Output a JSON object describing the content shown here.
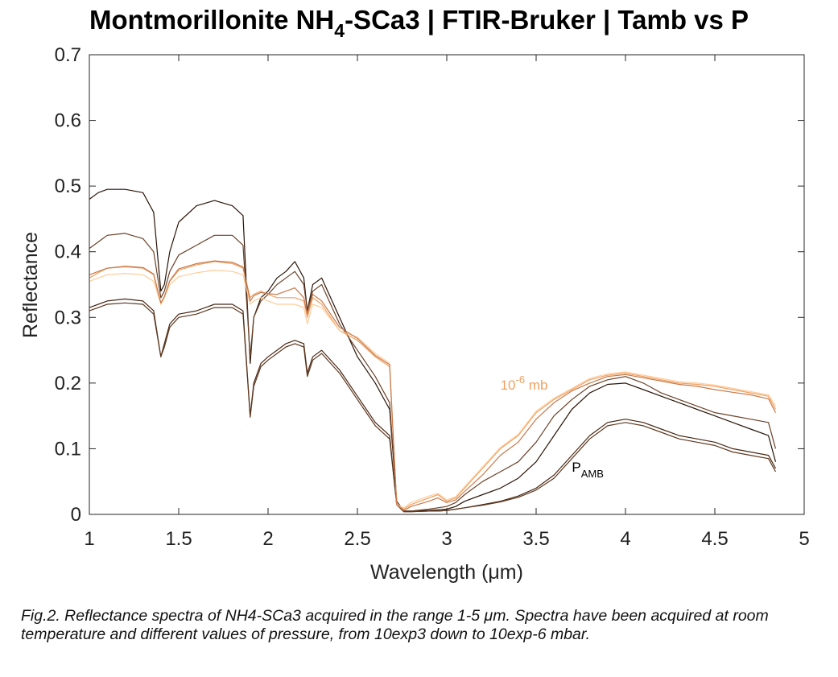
{
  "title": {
    "main": "Montmorillonite NH",
    "sub": "4",
    "rest": "-SCa3 | FTIR-Bruker | Tamb vs P"
  },
  "caption": "Fig.2. Reflectance spectra of NH4-SCa3 acquired in the range 1-5 μm. Spectra have been acquired at room temperature and different values of pressure, from 10exp3 down to 10exp-6 mbar.",
  "chart_data": {
    "type": "line",
    "xlabel": "Wavelength (μm)",
    "ylabel": "Reflectance",
    "xlim": [
      1,
      5
    ],
    "ylim": [
      0,
      0.7
    ],
    "xticks": [
      1,
      1.5,
      2,
      2.5,
      3,
      3.5,
      4,
      4.5,
      5
    ],
    "xtick_labels": [
      "1",
      "1.5",
      "2",
      "2.5",
      "3",
      "3.5",
      "4",
      "4.5",
      "5"
    ],
    "yticks": [
      0,
      0.1,
      0.2,
      0.3,
      0.4,
      0.5,
      0.6,
      0.7
    ],
    "ytick_labels": [
      "0",
      "0.1",
      "0.2",
      "0.3",
      "0.4",
      "0.5",
      "0.6",
      "0.7"
    ],
    "grid": false,
    "annotations": [
      {
        "text": "10",
        "sup": "-6",
        "suffix": " mb",
        "x": 3.3,
        "y": 0.19,
        "color": "#f0a060"
      },
      {
        "text": "P",
        "sub": "AMB",
        "x": 3.7,
        "y": 0.065,
        "color": "#000000"
      }
    ],
    "series": [
      {
        "color": "#2a1408",
        "x": [
          1.0,
          1.05,
          1.1,
          1.2,
          1.3,
          1.36,
          1.4,
          1.42,
          1.45,
          1.5,
          1.6,
          1.7,
          1.8,
          1.86,
          1.9,
          1.92,
          1.96,
          2.0,
          2.05,
          2.1,
          2.15,
          2.2,
          2.22,
          2.25,
          2.3,
          2.4,
          2.5,
          2.6,
          2.68,
          2.72,
          2.76,
          2.8,
          2.9,
          2.95,
          3.0,
          3.05,
          3.1,
          3.2,
          3.3,
          3.4,
          3.5,
          3.6,
          3.7,
          3.8,
          3.9,
          4.0,
          4.1,
          4.2,
          4.3,
          4.4,
          4.5,
          4.6,
          4.7,
          4.8,
          4.84
        ],
        "y": [
          0.48,
          0.49,
          0.495,
          0.495,
          0.49,
          0.46,
          0.34,
          0.35,
          0.4,
          0.445,
          0.47,
          0.478,
          0.47,
          0.455,
          0.23,
          0.3,
          0.33,
          0.34,
          0.36,
          0.37,
          0.385,
          0.36,
          0.31,
          0.35,
          0.36,
          0.3,
          0.24,
          0.2,
          0.16,
          0.02,
          0.005,
          0.005,
          0.006,
          0.007,
          0.008,
          0.012,
          0.02,
          0.03,
          0.04,
          0.055,
          0.08,
          0.12,
          0.16,
          0.185,
          0.198,
          0.2,
          0.19,
          0.18,
          0.17,
          0.16,
          0.15,
          0.14,
          0.13,
          0.12,
          0.08
        ]
      },
      {
        "color": "#6b4128",
        "x": [
          1.0,
          1.05,
          1.1,
          1.2,
          1.3,
          1.36,
          1.4,
          1.42,
          1.45,
          1.5,
          1.6,
          1.7,
          1.8,
          1.86,
          1.9,
          1.92,
          1.96,
          2.0,
          2.05,
          2.1,
          2.15,
          2.2,
          2.22,
          2.25,
          2.3,
          2.4,
          2.5,
          2.6,
          2.68,
          2.72,
          2.76,
          2.8,
          2.9,
          2.95,
          3.0,
          3.05,
          3.1,
          3.2,
          3.3,
          3.4,
          3.5,
          3.6,
          3.7,
          3.8,
          3.9,
          4.0,
          4.1,
          4.2,
          4.3,
          4.4,
          4.5,
          4.6,
          4.7,
          4.8,
          4.84
        ],
        "y": [
          0.405,
          0.415,
          0.425,
          0.428,
          0.42,
          0.4,
          0.33,
          0.34,
          0.37,
          0.395,
          0.41,
          0.425,
          0.425,
          0.41,
          0.24,
          0.3,
          0.325,
          0.335,
          0.35,
          0.36,
          0.37,
          0.35,
          0.31,
          0.34,
          0.35,
          0.29,
          0.25,
          0.21,
          0.17,
          0.02,
          0.005,
          0.005,
          0.008,
          0.01,
          0.012,
          0.018,
          0.03,
          0.05,
          0.065,
          0.08,
          0.11,
          0.15,
          0.175,
          0.195,
          0.205,
          0.21,
          0.2,
          0.185,
          0.175,
          0.165,
          0.155,
          0.15,
          0.145,
          0.14,
          0.1
        ]
      },
      {
        "color": "#4a2814",
        "x": [
          1.0,
          1.05,
          1.1,
          1.2,
          1.3,
          1.36,
          1.4,
          1.42,
          1.45,
          1.5,
          1.6,
          1.7,
          1.8,
          1.86,
          1.9,
          1.92,
          1.96,
          2.0,
          2.05,
          2.1,
          2.15,
          2.2,
          2.22,
          2.25,
          2.3,
          2.4,
          2.5,
          2.6,
          2.68,
          2.72,
          2.76,
          2.8,
          2.9,
          2.95,
          3.0,
          3.05,
          3.1,
          3.2,
          3.3,
          3.4,
          3.5,
          3.6,
          3.7,
          3.8,
          3.9,
          4.0,
          4.1,
          4.2,
          4.3,
          4.4,
          4.5,
          4.6,
          4.7,
          4.8,
          4.84
        ],
        "y": [
          0.315,
          0.32,
          0.325,
          0.328,
          0.325,
          0.31,
          0.24,
          0.26,
          0.29,
          0.305,
          0.31,
          0.32,
          0.32,
          0.31,
          0.15,
          0.2,
          0.23,
          0.24,
          0.25,
          0.26,
          0.265,
          0.26,
          0.215,
          0.24,
          0.25,
          0.22,
          0.18,
          0.14,
          0.12,
          0.015,
          0.004,
          0.004,
          0.005,
          0.005,
          0.006,
          0.008,
          0.01,
          0.015,
          0.02,
          0.028,
          0.04,
          0.06,
          0.09,
          0.12,
          0.14,
          0.145,
          0.14,
          0.13,
          0.12,
          0.115,
          0.11,
          0.1,
          0.095,
          0.09,
          0.07
        ]
      },
      {
        "color": "#5e3820",
        "x": [
          1.0,
          1.05,
          1.1,
          1.2,
          1.3,
          1.36,
          1.4,
          1.42,
          1.45,
          1.5,
          1.6,
          1.7,
          1.8,
          1.86,
          1.9,
          1.92,
          1.96,
          2.0,
          2.05,
          2.1,
          2.15,
          2.2,
          2.22,
          2.25,
          2.3,
          2.4,
          2.5,
          2.6,
          2.68,
          2.72,
          2.76,
          2.8,
          2.9,
          2.95,
          3.0,
          3.05,
          3.1,
          3.2,
          3.3,
          3.4,
          3.5,
          3.6,
          3.7,
          3.8,
          3.9,
          4.0,
          4.1,
          4.2,
          4.3,
          4.4,
          4.5,
          4.6,
          4.7,
          4.8,
          4.84
        ],
        "y": [
          0.31,
          0.315,
          0.32,
          0.322,
          0.32,
          0.305,
          0.24,
          0.255,
          0.285,
          0.3,
          0.305,
          0.315,
          0.315,
          0.305,
          0.148,
          0.195,
          0.225,
          0.235,
          0.245,
          0.255,
          0.26,
          0.255,
          0.21,
          0.235,
          0.245,
          0.215,
          0.175,
          0.135,
          0.115,
          0.015,
          0.004,
          0.004,
          0.005,
          0.005,
          0.006,
          0.008,
          0.01,
          0.014,
          0.019,
          0.026,
          0.037,
          0.055,
          0.085,
          0.115,
          0.135,
          0.14,
          0.135,
          0.125,
          0.115,
          0.11,
          0.105,
          0.095,
          0.09,
          0.085,
          0.065
        ]
      },
      {
        "color": "#f0a060",
        "x": [
          1.0,
          1.05,
          1.1,
          1.2,
          1.3,
          1.36,
          1.4,
          1.42,
          1.45,
          1.5,
          1.6,
          1.7,
          1.8,
          1.86,
          1.9,
          1.92,
          1.96,
          2.0,
          2.05,
          2.1,
          2.15,
          2.2,
          2.22,
          2.25,
          2.3,
          2.4,
          2.5,
          2.6,
          2.68,
          2.72,
          2.76,
          2.8,
          2.9,
          2.95,
          3.0,
          3.05,
          3.1,
          3.2,
          3.3,
          3.4,
          3.5,
          3.6,
          3.7,
          3.8,
          3.9,
          4.0,
          4.1,
          4.2,
          4.3,
          4.4,
          4.5,
          4.6,
          4.7,
          4.8,
          4.84
        ],
        "y": [
          0.36,
          0.368,
          0.375,
          0.377,
          0.375,
          0.365,
          0.32,
          0.33,
          0.355,
          0.372,
          0.38,
          0.385,
          0.382,
          0.375,
          0.33,
          0.335,
          0.34,
          0.335,
          0.33,
          0.33,
          0.33,
          0.325,
          0.3,
          0.33,
          0.32,
          0.28,
          0.265,
          0.24,
          0.225,
          0.015,
          0.008,
          0.015,
          0.025,
          0.03,
          0.02,
          0.025,
          0.04,
          0.07,
          0.1,
          0.12,
          0.155,
          0.175,
          0.19,
          0.205,
          0.212,
          0.215,
          0.21,
          0.205,
          0.2,
          0.198,
          0.195,
          0.19,
          0.185,
          0.18,
          0.16
        ]
      },
      {
        "color": "#ffcc99",
        "x": [
          1.0,
          1.05,
          1.1,
          1.2,
          1.3,
          1.36,
          1.4,
          1.42,
          1.45,
          1.5,
          1.6,
          1.7,
          1.8,
          1.86,
          1.9,
          1.92,
          1.96,
          2.0,
          2.05,
          2.1,
          2.15,
          2.2,
          2.22,
          2.25,
          2.3,
          2.4,
          2.5,
          2.6,
          2.68,
          2.72,
          2.76,
          2.8,
          2.9,
          2.95,
          3.0,
          3.05,
          3.1,
          3.2,
          3.3,
          3.4,
          3.5,
          3.6,
          3.7,
          3.8,
          3.9,
          4.0,
          4.1,
          4.2,
          4.3,
          4.4,
          4.5,
          4.6,
          4.7,
          4.8,
          4.84
        ],
        "y": [
          0.355,
          0.36,
          0.365,
          0.367,
          0.365,
          0.355,
          0.32,
          0.33,
          0.35,
          0.362,
          0.368,
          0.372,
          0.37,
          0.365,
          0.32,
          0.325,
          0.33,
          0.325,
          0.32,
          0.32,
          0.32,
          0.315,
          0.29,
          0.32,
          0.315,
          0.28,
          0.27,
          0.245,
          0.23,
          0.015,
          0.01,
          0.018,
          0.028,
          0.032,
          0.022,
          0.027,
          0.042,
          0.072,
          0.102,
          0.122,
          0.157,
          0.177,
          0.192,
          0.207,
          0.214,
          0.217,
          0.212,
          0.207,
          0.202,
          0.2,
          0.197,
          0.192,
          0.187,
          0.182,
          0.165
        ]
      },
      {
        "color": "#c8784a",
        "x": [
          1.0,
          1.05,
          1.1,
          1.2,
          1.3,
          1.36,
          1.4,
          1.42,
          1.45,
          1.5,
          1.6,
          1.7,
          1.8,
          1.86,
          1.9,
          1.92,
          1.96,
          2.0,
          2.05,
          2.1,
          2.15,
          2.2,
          2.22,
          2.25,
          2.3,
          2.4,
          2.5,
          2.6,
          2.68,
          2.72,
          2.76,
          2.8,
          2.9,
          2.95,
          3.0,
          3.05,
          3.1,
          3.2,
          3.3,
          3.4,
          3.5,
          3.6,
          3.7,
          3.8,
          3.9,
          4.0,
          4.1,
          4.2,
          4.3,
          4.4,
          4.5,
          4.6,
          4.7,
          4.8,
          4.84
        ],
        "y": [
          0.365,
          0.37,
          0.375,
          0.378,
          0.376,
          0.366,
          0.322,
          0.332,
          0.356,
          0.374,
          0.382,
          0.386,
          0.384,
          0.377,
          0.325,
          0.333,
          0.338,
          0.336,
          0.335,
          0.34,
          0.345,
          0.33,
          0.305,
          0.335,
          0.325,
          0.285,
          0.268,
          0.242,
          0.228,
          0.015,
          0.006,
          0.012,
          0.02,
          0.025,
          0.018,
          0.022,
          0.035,
          0.06,
          0.09,
          0.11,
          0.145,
          0.17,
          0.188,
          0.2,
          0.21,
          0.213,
          0.208,
          0.203,
          0.198,
          0.195,
          0.19,
          0.186,
          0.182,
          0.176,
          0.155
        ]
      }
    ]
  }
}
